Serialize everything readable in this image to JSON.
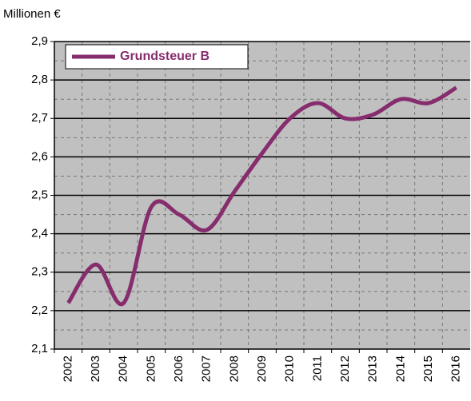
{
  "chart_data": {
    "type": "line",
    "y_axis_label": "Millionen €",
    "categories": [
      "2002",
      "2003",
      "2004",
      "2005",
      "2006",
      "2007",
      "2008",
      "2009",
      "2010",
      "2011",
      "2012",
      "2013",
      "2014",
      "2015",
      "2016"
    ],
    "series": [
      {
        "name": "Grundsteuer B",
        "color": "#862d6e",
        "values": [
          2.22,
          2.32,
          2.22,
          2.47,
          2.45,
          2.41,
          2.51,
          2.61,
          2.7,
          2.74,
          2.7,
          2.71,
          2.75,
          2.74,
          2.78
        ]
      }
    ],
    "ylim": [
      2.1,
      2.9
    ],
    "yticks": [
      {
        "value": 2.1,
        "label": "2,1"
      },
      {
        "value": 2.2,
        "label": "2,2"
      },
      {
        "value": 2.3,
        "label": "2,3"
      },
      {
        "value": 2.4,
        "label": "2,4"
      },
      {
        "value": 2.5,
        "label": "2,5"
      },
      {
        "value": 2.6,
        "label": "2,6"
      },
      {
        "value": 2.7,
        "label": "2,7"
      },
      {
        "value": 2.8,
        "label": "2,8"
      },
      {
        "value": 2.9,
        "label": "2,9"
      }
    ],
    "grid": true,
    "legend": "top-left"
  }
}
